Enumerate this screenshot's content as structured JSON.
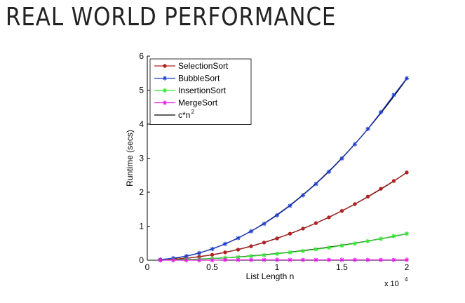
{
  "slide": {
    "title": "REAL WORLD PERFORMANCE"
  },
  "chart_data": {
    "type": "line",
    "title": "",
    "xlabel": "List Length n",
    "ylabel": "Runtime (secs)",
    "x_multiplier_label": "x 10",
    "x_multiplier_exponent": "4",
    "xlim": [
      0,
      2
    ],
    "ylim": [
      0,
      6
    ],
    "xticks": [
      0,
      0.5,
      1,
      1.5,
      2
    ],
    "xtick_labels": [
      "0",
      "0.5",
      "1",
      "1.5",
      "2"
    ],
    "yticks": [
      0,
      1,
      2,
      3,
      4,
      5,
      6
    ],
    "ytick_labels": [
      "0",
      "1",
      "2",
      "3",
      "4",
      "5",
      "6"
    ],
    "grid": false,
    "legend_position": "top-left",
    "x": [
      0.1,
      0.2,
      0.3,
      0.4,
      0.5,
      0.6,
      0.7,
      0.8,
      0.9,
      1.0,
      1.1,
      1.2,
      1.3,
      1.4,
      1.5,
      1.6,
      1.7,
      1.8,
      1.9,
      2.0
    ],
    "series": [
      {
        "name": "SelectionSort",
        "color": "#b22222",
        "marker": "dot",
        "values": [
          0.01,
          0.03,
          0.06,
          0.1,
          0.16,
          0.23,
          0.31,
          0.41,
          0.52,
          0.64,
          0.78,
          0.93,
          1.09,
          1.26,
          1.45,
          1.65,
          1.87,
          2.1,
          2.33,
          2.58
        ]
      },
      {
        "name": "BubbleSort",
        "color": "#1f3fd0",
        "marker": "star",
        "values": [
          0.02,
          0.06,
          0.12,
          0.21,
          0.33,
          0.48,
          0.65,
          0.85,
          1.07,
          1.32,
          1.6,
          1.91,
          2.24,
          2.6,
          2.99,
          3.41,
          3.86,
          4.35,
          4.86,
          5.35
        ]
      },
      {
        "name": "InsertionSort",
        "color": "#2ee62e",
        "marker": "star",
        "values": [
          0.0,
          0.01,
          0.02,
          0.03,
          0.05,
          0.07,
          0.09,
          0.12,
          0.15,
          0.19,
          0.23,
          0.27,
          0.32,
          0.37,
          0.43,
          0.49,
          0.56,
          0.63,
          0.71,
          0.78
        ]
      },
      {
        "name": "MergeSort",
        "color": "#e81ae8",
        "marker": "star",
        "values": [
          0.0,
          0.0,
          0.0,
          0.0,
          0.0,
          0.01,
          0.01,
          0.01,
          0.01,
          0.01,
          0.01,
          0.01,
          0.01,
          0.01,
          0.01,
          0.01,
          0.01,
          0.01,
          0.01,
          0.01
        ]
      }
    ],
    "reference_curves": [
      {
        "name": "c*n",
        "name_superscript": "2",
        "color": "#000000",
        "formula": "c*n^2",
        "c_values": [
          1.335,
          0.645,
          0.195
        ]
      }
    ]
  }
}
